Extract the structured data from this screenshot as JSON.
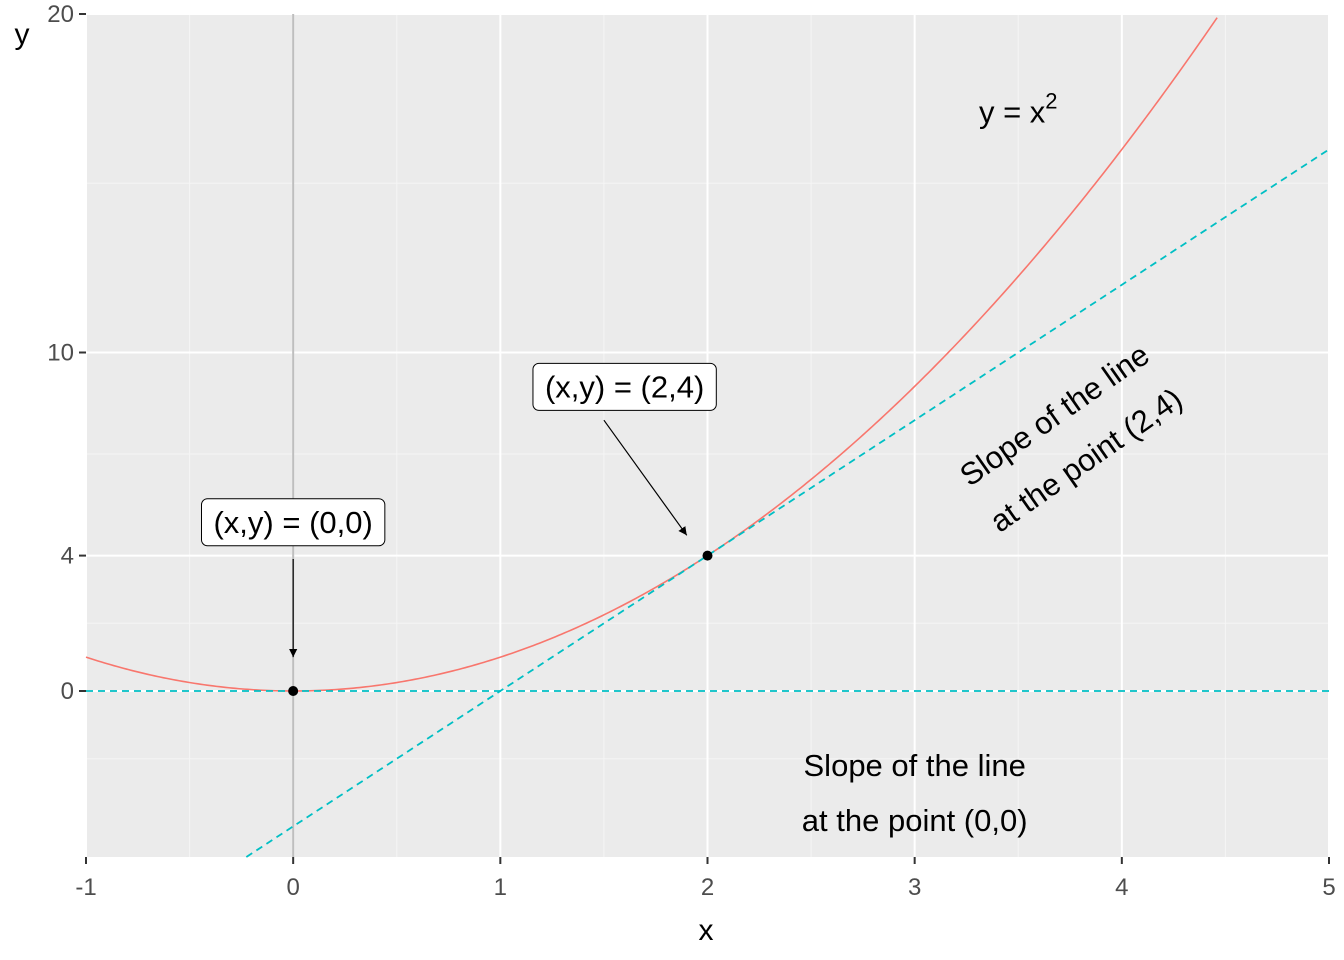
{
  "chart_data": {
    "type": "line",
    "xlabel": "x",
    "ylabel": "y",
    "xlim": [
      -1,
      5
    ],
    "ylim": [
      -5,
      20
    ],
    "x_ticks": [
      {
        "value": -1,
        "label": "-1"
      },
      {
        "value": 0,
        "label": "0"
      },
      {
        "value": 1,
        "label": "1"
      },
      {
        "value": 2,
        "label": "2"
      },
      {
        "value": 3,
        "label": "3"
      },
      {
        "value": 4,
        "label": "4"
      },
      {
        "value": 5,
        "label": "5"
      }
    ],
    "y_ticks": [
      {
        "value": 0,
        "label": "0"
      },
      {
        "value": 4,
        "label": "4"
      },
      {
        "value": 10,
        "label": "10"
      },
      {
        "value": 20,
        "label": "20"
      }
    ],
    "grid": true,
    "panel_background": "#ebebeb",
    "series": [
      {
        "kind": "curve",
        "formula": "y = x^2",
        "x_range": [
          -1,
          5
        ],
        "color": "#f8766d",
        "style": "solid"
      },
      {
        "kind": "tangent",
        "at": [
          0,
          0
        ],
        "slope": 0,
        "intercept": 0,
        "color": "#00bfc4",
        "style": "dashed"
      },
      {
        "kind": "tangent",
        "at": [
          2,
          4
        ],
        "slope": 4,
        "intercept": -4,
        "color": "#00bfc4",
        "style": "dashed"
      }
    ],
    "vertical_line": {
      "x": 0,
      "color": "#bebebe"
    },
    "points": [
      {
        "x": 0,
        "y": 0,
        "label": "(x,y) = (0,0)",
        "label_at": [
          0,
          5
        ],
        "arrow_from": [
          0,
          3.9
        ],
        "arrow_to": [
          0,
          1
        ]
      },
      {
        "x": 2,
        "y": 4,
        "label": "(x,y) = (2,4)",
        "label_at": [
          1.6,
          9
        ],
        "arrow_from": [
          1.5,
          8
        ],
        "arrow_to": [
          1.9,
          4.6
        ]
      }
    ],
    "annotations": [
      {
        "id": "curve-label",
        "prefix": "y = x",
        "superscript": "2",
        "x": 3.5,
        "y": 16.8
      },
      {
        "id": "slope-0",
        "lines": [
          "Slope of the line",
          "at the point (0,0)"
        ],
        "x": 3,
        "y": -3,
        "angle": 0
      },
      {
        "id": "slope-24",
        "lines": [
          "Slope of the line",
          "at the point (2,4)"
        ],
        "x": 3.75,
        "y": 7.5,
        "angle": -35
      }
    ]
  }
}
